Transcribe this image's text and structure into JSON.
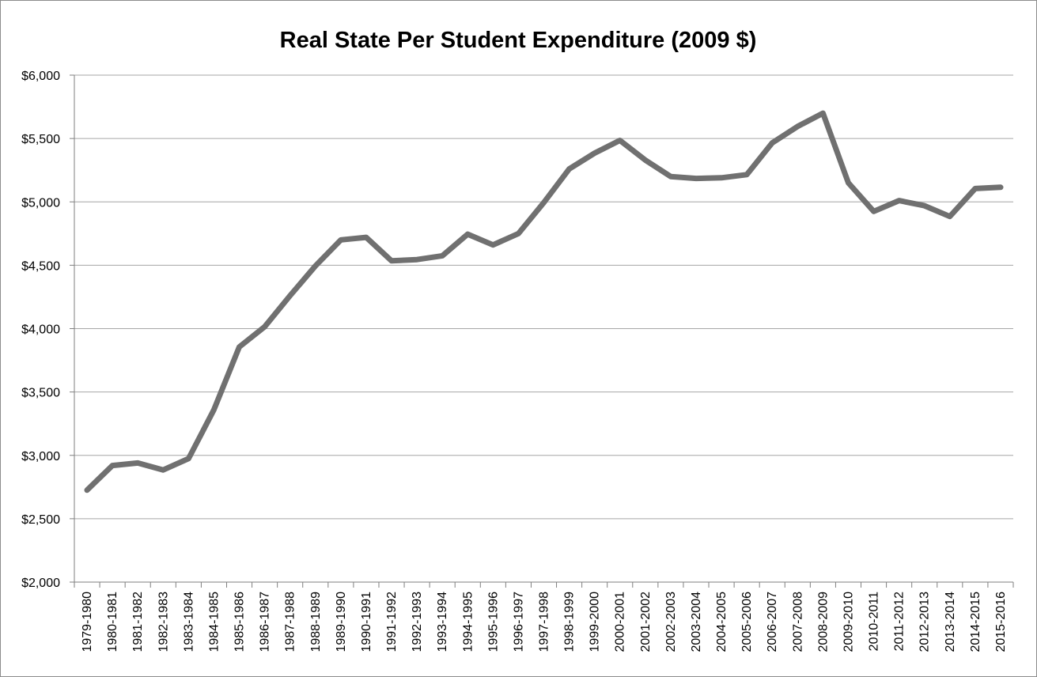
{
  "chart_data": {
    "type": "line",
    "title": "Real State Per Student Expenditure (2009 $)",
    "xlabel": "",
    "ylabel": "",
    "ylim": [
      2000,
      6000
    ],
    "ytick_step": 500,
    "ytick_labels": [
      "$2,000",
      "$2,500",
      "$3,000",
      "$3,500",
      "$4,000",
      "$4,500",
      "$5,000",
      "$5,500",
      "$6,000"
    ],
    "grid": true,
    "legend": "none",
    "categories": [
      "1979-1980",
      "1980-1981",
      "1981-1982",
      "1982-1983",
      "1983-1984",
      "1984-1985",
      "1985-1986",
      "1986-1987",
      "1987-1988",
      "1988-1989",
      "1989-1990",
      "1990-1991",
      "1991-1992",
      "1992-1993",
      "1993-1994",
      "1994-1995",
      "1995-1996",
      "1996-1997",
      "1997-1998",
      "1998-1999",
      "1999-2000",
      "2000-2001",
      "2001-2002",
      "2002-2003",
      "2003-2004",
      "2004-2005",
      "2005-2006",
      "2006-2007",
      "2007-2008",
      "2008-2009",
      "2009-2010",
      "2010-2011",
      "2011-2012",
      "2012-2013",
      "2013-2014",
      "2014-2015",
      "2015-2016"
    ],
    "series": [
      {
        "color": "#707070",
        "values": [
          2725,
          2920,
          2940,
          2885,
          2975,
          3360,
          3855,
          4015,
          4260,
          4495,
          4700,
          4720,
          4535,
          4545,
          4575,
          4745,
          4660,
          4750,
          4995,
          5260,
          5385,
          5485,
          5330,
          5200,
          5185,
          5190,
          5215,
          5465,
          5595,
          5700,
          5150,
          4925,
          5010,
          4970,
          4885,
          5105,
          5115
        ]
      }
    ]
  }
}
